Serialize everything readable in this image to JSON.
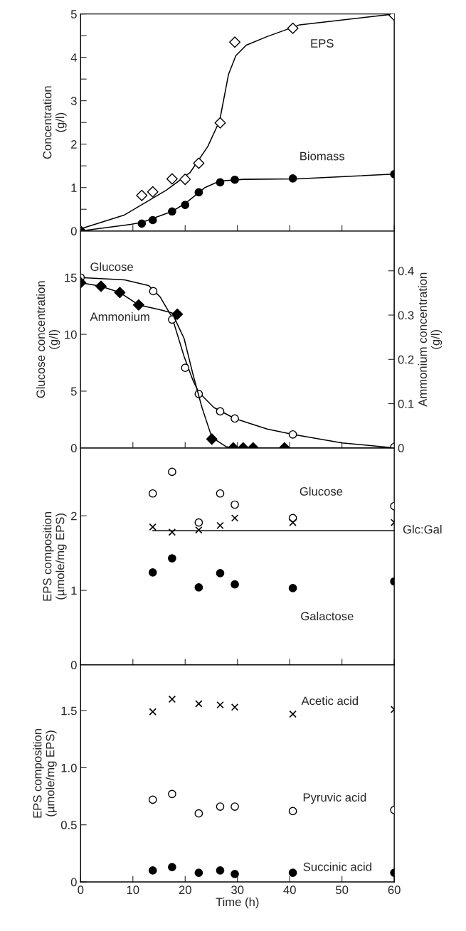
{
  "chart_data": [
    {
      "type": "scatter",
      "ylabel": "Concentration\n(g/l)",
      "xlim": [
        0,
        60
      ],
      "xticks": [
        0,
        10,
        20,
        30,
        40,
        50,
        60
      ],
      "ylim": [
        0,
        5
      ],
      "yticks": [
        0,
        {
          "value": 0.5,
          "label": null
        },
        1,
        {
          "value": 1.5,
          "label": null
        },
        2,
        {
          "value": 2.5,
          "label": null
        },
        3,
        {
          "value": 3.5,
          "label": null
        },
        4,
        {
          "value": 4.5,
          "label": null
        },
        5
      ],
      "tick_labels": "y",
      "grid": false,
      "legend": false,
      "series": [
        {
          "type": "line",
          "color": "#000000",
          "x": [
            0,
            8.4,
            16.4,
            20.9,
            24.3,
            26.6,
            28.3,
            29.7,
            31.7,
            35.7,
            41.9,
            60
          ],
          "values": [
            0.05,
            0.37,
            0.94,
            1.34,
            1.94,
            2.54,
            3.61,
            4.04,
            4.28,
            4.48,
            4.75,
            5.0
          ]
        },
        {
          "type": "line",
          "color": "#000000",
          "x": [
            0,
            9.6,
            11.8,
            17.5,
            20.1,
            23.8,
            26.6,
            31.2,
            41.4,
            60
          ],
          "values": [
            0,
            0.15,
            0.2,
            0.45,
            0.64,
            1.0,
            1.15,
            1.19,
            1.2,
            1.31
          ]
        },
        {
          "name": "EPS",
          "marker": "diamond",
          "color": "#ffffff",
          "x": [
            0,
            11.7,
            13.8,
            17.5,
            20.0,
            22.6,
            26.7,
            29.5,
            40.6,
            60
          ],
          "values": [
            0,
            0.82,
            0.9,
            1.2,
            1.19,
            1.56,
            2.49,
            4.35,
            4.67,
            4.97
          ]
        },
        {
          "name": "Biomass",
          "marker": "circle",
          "color": "#000000",
          "x": [
            0,
            11.7,
            13.8,
            17.5,
            20.0,
            22.6,
            26.7,
            29.5,
            40.6,
            60
          ],
          "values": [
            0,
            0.17,
            0.25,
            0.45,
            0.6,
            0.89,
            1.12,
            1.18,
            1.21,
            1.31
          ]
        }
      ]
    },
    {
      "type": "scatter",
      "ylabel": "Glucose concentration\n(g/l)",
      "y2label": "Ammonium concentration\n(g/l)",
      "xlim": [
        0,
        60
      ],
      "xticks": [
        0,
        10,
        20,
        30,
        40,
        50,
        60
      ],
      "ylim": [
        0,
        19.1
      ],
      "yticks": [
        0,
        5,
        10,
        15
      ],
      "y2lim": [
        0,
        0.49
      ],
      "y2ticks": [
        0,
        0.1,
        0.2,
        0.3,
        0.4
      ],
      "tick_labels": "y",
      "grid": false,
      "legend": false,
      "series": [
        {
          "type": "line",
          "color": "#000000",
          "x": [
            0,
            8.4,
            13.0,
            15.2,
            17.5,
            19.8,
            21.5,
            22.6,
            25.5,
            29.5,
            35.7,
            40.6,
            50,
            60
          ],
          "values": [
            15.0,
            14.8,
            14.3,
            13.3,
            11.5,
            8.05,
            5.94,
            4.9,
            3.56,
            2.59,
            1.66,
            1.19,
            0.45,
            0
          ]
        },
        {
          "type": "line",
          "axis": "y2",
          "color": "#000000",
          "x": [
            0,
            3.9,
            7.5,
            11.1,
            15.2,
            17.5,
            19.8,
            21.5,
            23.2,
            25.1,
            27.8,
            29.2,
            39.1,
            60
          ],
          "values": [
            0.373,
            0.365,
            0.351,
            0.323,
            0.312,
            0.305,
            0.247,
            0.166,
            0.092,
            0.024,
            0.003,
            0,
            0,
            0
          ]
        },
        {
          "name": "Glucose",
          "marker": "circle",
          "color": "#ffffff",
          "x": [
            0,
            13.9,
            17.5,
            20.0,
            22.6,
            26.7,
            29.5,
            40.6,
            60
          ],
          "values": [
            15.0,
            13.8,
            11.3,
            7.05,
            4.75,
            3.22,
            2.59,
            1.19,
            0.08
          ]
        },
        {
          "name": "Ammonium",
          "axis": "y2",
          "marker": "diamond",
          "color": "#000000",
          "x": [
            0,
            3.9,
            7.5,
            11.1,
            18.5,
            25.1,
            29.2,
            31.1,
            33.0,
            39.0
          ],
          "values": [
            0.373,
            0.365,
            0.351,
            0.323,
            0.302,
            0.02,
            0,
            0,
            0,
            0
          ]
        }
      ]
    },
    {
      "type": "scatter",
      "ylabel": "EPS composition\n(µmole/mg EPS)",
      "xlim": [
        0,
        60
      ],
      "xticks": [
        0,
        10,
        20,
        30,
        40,
        50,
        60
      ],
      "ylim": [
        0,
        2.91
      ],
      "yticks": [
        0,
        1,
        2
      ],
      "tick_labels": "y",
      "grid": false,
      "legend": false,
      "series": [
        {
          "type": "line",
          "color": "#000000",
          "x": [
            13.8,
            60
          ],
          "values": [
            1.8,
            1.8
          ]
        },
        {
          "name": "Glucose",
          "marker": "circle",
          "color": "#ffffff",
          "x": [
            13.8,
            17.5,
            22.6,
            26.7,
            29.5,
            40.6,
            60
          ],
          "values": [
            2.3,
            2.59,
            1.91,
            2.3,
            2.15,
            1.97,
            2.13
          ]
        },
        {
          "name": "Glc:Gal",
          "marker": "cross",
          "color": "#000000",
          "x": [
            13.8,
            17.5,
            22.6,
            26.7,
            29.5,
            40.6,
            60
          ],
          "values": [
            1.85,
            1.78,
            1.81,
            1.87,
            1.97,
            1.91,
            1.91
          ]
        },
        {
          "name": "Galactose",
          "marker": "circle",
          "color": "#000000",
          "x": [
            13.8,
            17.5,
            22.6,
            26.7,
            29.5,
            40.6,
            60
          ],
          "values": [
            1.24,
            1.43,
            1.04,
            1.23,
            1.08,
            1.03,
            1.12
          ]
        }
      ]
    },
    {
      "type": "scatter",
      "xlabel": "Time (h)",
      "ylabel": "EPS composition\n(µmole/mg EPS)",
      "xlim": [
        0,
        60
      ],
      "xticks": [
        0,
        10,
        20,
        30,
        40,
        50,
        60
      ],
      "ylim": [
        0,
        1.9
      ],
      "yticks": [
        0,
        0.5,
        {
          "value": 1.0,
          "label": "1.0"
        },
        1.5
      ],
      "grid": false,
      "legend": false,
      "series": [
        {
          "name": "Acetic acid",
          "marker": "cross",
          "color": "#000000",
          "x": [
            13.8,
            17.5,
            22.6,
            26.7,
            29.5,
            40.6,
            60
          ],
          "values": [
            1.49,
            1.6,
            1.56,
            1.55,
            1.53,
            1.47,
            1.51
          ]
        },
        {
          "name": "Pyruvic acid",
          "marker": "circle",
          "color": "#ffffff",
          "x": [
            13.8,
            17.5,
            22.6,
            26.7,
            29.5,
            40.6,
            60
          ],
          "values": [
            0.72,
            0.77,
            0.6,
            0.66,
            0.66,
            0.62,
            0.63
          ]
        },
        {
          "name": "Succinic acid",
          "marker": "circle",
          "color": "#000000",
          "x": [
            13.8,
            17.5,
            22.6,
            26.7,
            29.5,
            40.6,
            60
          ],
          "values": [
            0.1,
            0.13,
            0.08,
            0.1,
            0.07,
            0.08,
            0.08
          ]
        }
      ]
    }
  ]
}
